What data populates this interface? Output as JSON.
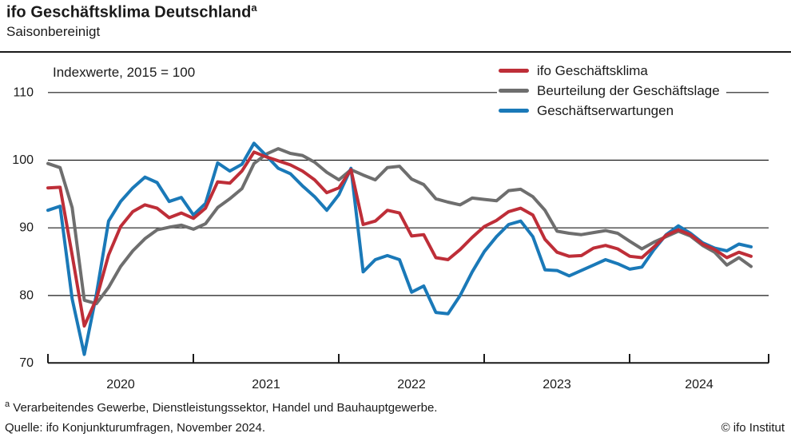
{
  "header": {
    "title": "ifo Geschäftsklima Deutschland",
    "title_superscript": "a",
    "subtitle": "Saisonbereinigt"
  },
  "chart_data": {
    "type": "line",
    "title": "ifo Geschäftsklima Deutschland (saisonbereinigt)",
    "inner_label": "Indexwerte, 2015 = 100",
    "x_start": "2020-01",
    "x_end": "2024-11",
    "frequency": "monthly",
    "ylim": [
      70,
      110
    ],
    "y_tick_labels": [
      "110",
      "100",
      "90",
      "80",
      "70"
    ],
    "x_tick_labels": [
      "2020",
      "2021",
      "2022",
      "2023",
      "2024"
    ],
    "grid": "horizontal",
    "legend_position": "top-right",
    "series": [
      {
        "name": "ifo Geschäftsklima",
        "color": "#be2e38",
        "values": [
          95.9,
          96.0,
          86.0,
          75.5,
          79.5,
          86.0,
          90.2,
          92.4,
          93.4,
          92.9,
          91.5,
          92.2,
          91.4,
          92.9,
          96.8,
          96.6,
          98.4,
          101.2,
          100.5,
          99.9,
          99.3,
          98.4,
          97.1,
          95.2,
          95.9,
          98.6,
          90.5,
          91.0,
          92.6,
          92.2,
          88.8,
          89.0,
          85.6,
          85.3,
          86.8,
          88.6,
          90.2,
          91.1,
          92.4,
          92.9,
          91.9,
          88.3,
          86.4,
          85.8,
          85.9,
          87.0,
          87.4,
          86.9,
          85.8,
          85.6,
          87.2,
          88.9,
          89.7,
          89.0,
          87.6,
          86.8,
          85.6,
          86.4,
          85.8
        ]
      },
      {
        "name": "Beurteilung der Geschäftslage",
        "color": "#6e6e6e",
        "values": [
          99.5,
          98.9,
          93.0,
          79.3,
          78.8,
          81.2,
          84.3,
          86.6,
          88.4,
          89.7,
          90.1,
          90.4,
          89.8,
          90.6,
          93.0,
          94.3,
          95.8,
          99.5,
          100.9,
          101.7,
          101.0,
          100.7,
          99.7,
          98.2,
          97.1,
          98.6,
          97.8,
          97.1,
          98.9,
          99.1,
          97.2,
          96.4,
          94.3,
          93.8,
          93.4,
          94.4,
          94.2,
          94.0,
          95.5,
          95.7,
          94.6,
          92.6,
          89.5,
          89.2,
          89.0,
          89.3,
          89.6,
          89.2,
          88.0,
          86.9,
          87.9,
          88.7,
          89.5,
          88.8,
          87.4,
          86.4,
          84.5,
          85.6,
          84.3
        ]
      },
      {
        "name": "Geschäftserwartungen",
        "color": "#1a79b8",
        "values": [
          92.6,
          93.2,
          79.5,
          71.3,
          80.2,
          91.0,
          93.9,
          95.9,
          97.5,
          96.7,
          93.9,
          94.5,
          91.9,
          93.6,
          99.6,
          98.4,
          99.4,
          102.5,
          100.7,
          98.8,
          98.0,
          96.2,
          94.6,
          92.6,
          94.9,
          98.8,
          83.5,
          85.3,
          85.9,
          85.3,
          80.5,
          81.4,
          77.5,
          77.3,
          80.0,
          83.5,
          86.5,
          88.7,
          90.5,
          91.0,
          88.7,
          83.8,
          83.7,
          82.9,
          83.7,
          84.5,
          85.3,
          84.7,
          83.9,
          84.2,
          86.8,
          89.0,
          90.3,
          89.2,
          87.8,
          87.0,
          86.6,
          87.6,
          87.2
        ]
      }
    ]
  },
  "footer": {
    "footnote_superscript": "a",
    "footnote": " Verarbeitendes Gewerbe, Dienstleistungssektor, Handel und Bauhauptgewerbe.",
    "source": "Quelle: ifo Konjunkturumfragen, November 2024.",
    "copyright": "© ifo Institut"
  }
}
